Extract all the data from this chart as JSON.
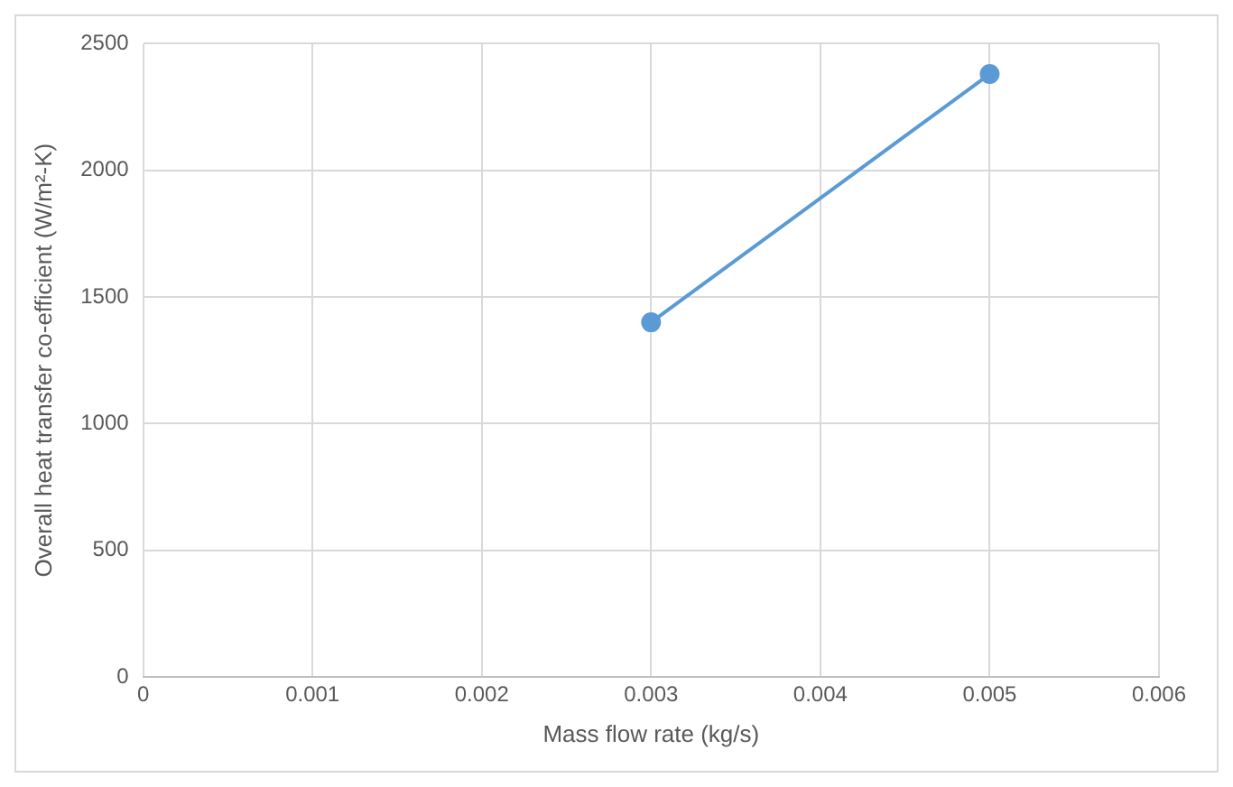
{
  "chart_data": {
    "type": "line",
    "xlabel": "Mass flow rate (kg/s)",
    "ylabel": "Overall heat transfer co-efficient (W/m²-K)",
    "x": [
      0.003,
      0.005
    ],
    "series": [
      {
        "color": "#5b9bd5",
        "values": [
          1400,
          2380
        ]
      }
    ],
    "xlim": [
      0,
      0.006
    ],
    "xticks": [
      0,
      0.001,
      0.002,
      0.003,
      0.004,
      0.005,
      0.006
    ],
    "ylim": [
      0,
      2500
    ],
    "yticks": [
      0,
      500,
      1000,
      1500,
      2000,
      2500
    ],
    "grid": true,
    "legend": false,
    "marker": "circle",
    "line_style": "solid"
  }
}
